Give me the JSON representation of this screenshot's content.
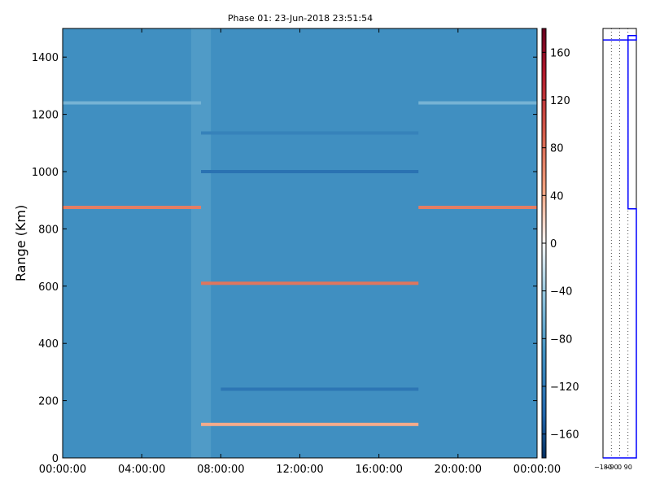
{
  "chart_data": [
    {
      "type": "heatmap",
      "title": "Phase 01: 23-Jun-2018 23:51:54",
      "ylabel": "Range (Km)",
      "xlabel": "",
      "x_tick_labels": [
        "00:00:00",
        "04:00:00",
        "08:00:00",
        "12:00:00",
        "16:00:00",
        "20:00:00",
        "00:00:00"
      ],
      "x_range_hours": [
        0,
        24
      ],
      "y_ticks": [
        0,
        200,
        400,
        600,
        800,
        1000,
        1200,
        1400
      ],
      "ylim": [
        0,
        1500
      ],
      "colorbar": {
        "colormap": "RdBu_r",
        "ticks": [
          160,
          120,
          80,
          40,
          0,
          -40,
          -80,
          -120,
          -160
        ],
        "range": [
          -180,
          180
        ]
      },
      "background_value": -95,
      "bright_band": {
        "start_hour": 6.5,
        "end_hour": 7.5,
        "value": -75
      },
      "range_lines": [
        {
          "range_km": 1240,
          "hours": [
            [
              0,
              7
            ],
            [
              18,
              24
            ]
          ],
          "value": -60
        },
        {
          "range_km": 1135,
          "hours": [
            [
              7,
              18
            ]
          ],
          "value": -110
        },
        {
          "range_km": 1000,
          "hours": [
            [
              7,
              18
            ]
          ],
          "value": -130
        },
        {
          "range_km": 875,
          "hours": [
            [
              0,
              7
            ],
            [
              18,
              24
            ]
          ],
          "value": 70
        },
        {
          "range_km": 610,
          "hours": [
            [
              7,
              18
            ]
          ],
          "value": 75
        },
        {
          "range_km": 240,
          "hours": [
            [
              8,
              18
            ]
          ],
          "value": -125
        },
        {
          "range_km": 117,
          "hours": [
            [
              7,
              18
            ]
          ],
          "value": 40
        }
      ]
    },
    {
      "type": "line",
      "title": "",
      "x_tick_labels": [
        "−180",
        "−90",
        "0",
        "90"
      ],
      "xlim": [
        -180,
        180
      ],
      "ylim": [
        0,
        1500
      ],
      "series": [
        {
          "x": [
            -180,
            180,
            180,
            90,
            90,
            180,
            180,
            -180
          ],
          "y": [
            1460,
            1460,
            1475,
            1475,
            870,
            870,
            0,
            0
          ]
        }
      ]
    }
  ]
}
